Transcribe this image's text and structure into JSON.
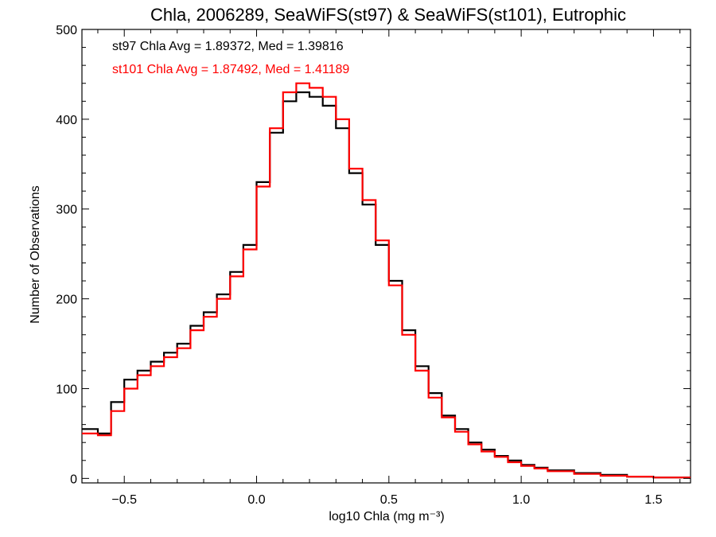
{
  "chart_data": {
    "type": "histogram-step",
    "title": "Chla, 2006289, SeaWiFS(st97) & SeaWiFS(st101), Eutrophic",
    "xlabel": "log10 Chla (mg m⁻³)",
    "ylabel": "Number of Observations",
    "xlim": [
      -0.66,
      1.64
    ],
    "ylim": [
      -5,
      500
    ],
    "xticks": [
      -0.5,
      0.0,
      0.5,
      1.0,
      1.5
    ],
    "xtick_labels": [
      "−0.5",
      "0.0",
      "0.5",
      "1.0",
      "1.5"
    ],
    "yticks": [
      0,
      100,
      200,
      300,
      400,
      500
    ],
    "ytick_labels": [
      "0",
      "100",
      "200",
      "300",
      "400",
      "500"
    ],
    "grid": false,
    "annotations": [
      {
        "text": "st97 Chla Avg = 1.89372, Med = 1.39816",
        "color": "#000000"
      },
      {
        "text": "st101 Chla Avg = 1.87492, Med = 1.41189",
        "color": "#ff0000"
      }
    ],
    "series": [
      {
        "color": "#000000",
        "points": [
          [
            -0.66,
            55
          ],
          [
            -0.6,
            50
          ],
          [
            -0.55,
            85
          ],
          [
            -0.5,
            110
          ],
          [
            -0.45,
            120
          ],
          [
            -0.4,
            130
          ],
          [
            -0.35,
            140
          ],
          [
            -0.3,
            150
          ],
          [
            -0.25,
            170
          ],
          [
            -0.2,
            185
          ],
          [
            -0.15,
            205
          ],
          [
            -0.1,
            230
          ],
          [
            -0.05,
            260
          ],
          [
            0.0,
            330
          ],
          [
            0.05,
            385
          ],
          [
            0.1,
            420
          ],
          [
            0.15,
            430
          ],
          [
            0.2,
            425
          ],
          [
            0.25,
            415
          ],
          [
            0.3,
            390
          ],
          [
            0.35,
            340
          ],
          [
            0.4,
            305
          ],
          [
            0.45,
            260
          ],
          [
            0.5,
            220
          ],
          [
            0.55,
            165
          ],
          [
            0.6,
            125
          ],
          [
            0.65,
            95
          ],
          [
            0.7,
            70
          ],
          [
            0.75,
            55
          ],
          [
            0.8,
            40
          ],
          [
            0.85,
            32
          ],
          [
            0.9,
            25
          ],
          [
            0.95,
            20
          ],
          [
            1.0,
            15
          ],
          [
            1.05,
            12
          ],
          [
            1.1,
            9
          ],
          [
            1.2,
            6
          ],
          [
            1.3,
            4
          ],
          [
            1.4,
            2
          ],
          [
            1.5,
            1
          ],
          [
            1.64,
            1
          ]
        ]
      },
      {
        "color": "#ff0000",
        "points": [
          [
            -0.66,
            50
          ],
          [
            -0.6,
            48
          ],
          [
            -0.55,
            75
          ],
          [
            -0.5,
            100
          ],
          [
            -0.45,
            115
          ],
          [
            -0.4,
            125
          ],
          [
            -0.35,
            135
          ],
          [
            -0.3,
            145
          ],
          [
            -0.25,
            165
          ],
          [
            -0.2,
            180
          ],
          [
            -0.15,
            200
          ],
          [
            -0.1,
            225
          ],
          [
            -0.05,
            255
          ],
          [
            0.0,
            325
          ],
          [
            0.05,
            390
          ],
          [
            0.1,
            430
          ],
          [
            0.15,
            440
          ],
          [
            0.2,
            435
          ],
          [
            0.25,
            425
          ],
          [
            0.3,
            400
          ],
          [
            0.35,
            345
          ],
          [
            0.4,
            310
          ],
          [
            0.45,
            265
          ],
          [
            0.5,
            215
          ],
          [
            0.55,
            160
          ],
          [
            0.6,
            120
          ],
          [
            0.65,
            90
          ],
          [
            0.7,
            68
          ],
          [
            0.75,
            52
          ],
          [
            0.8,
            38
          ],
          [
            0.85,
            30
          ],
          [
            0.9,
            24
          ],
          [
            0.95,
            18
          ],
          [
            1.0,
            14
          ],
          [
            1.05,
            11
          ],
          [
            1.1,
            8
          ],
          [
            1.2,
            5
          ],
          [
            1.3,
            3
          ],
          [
            1.4,
            2
          ],
          [
            1.5,
            1
          ],
          [
            1.64,
            1
          ]
        ]
      }
    ]
  }
}
